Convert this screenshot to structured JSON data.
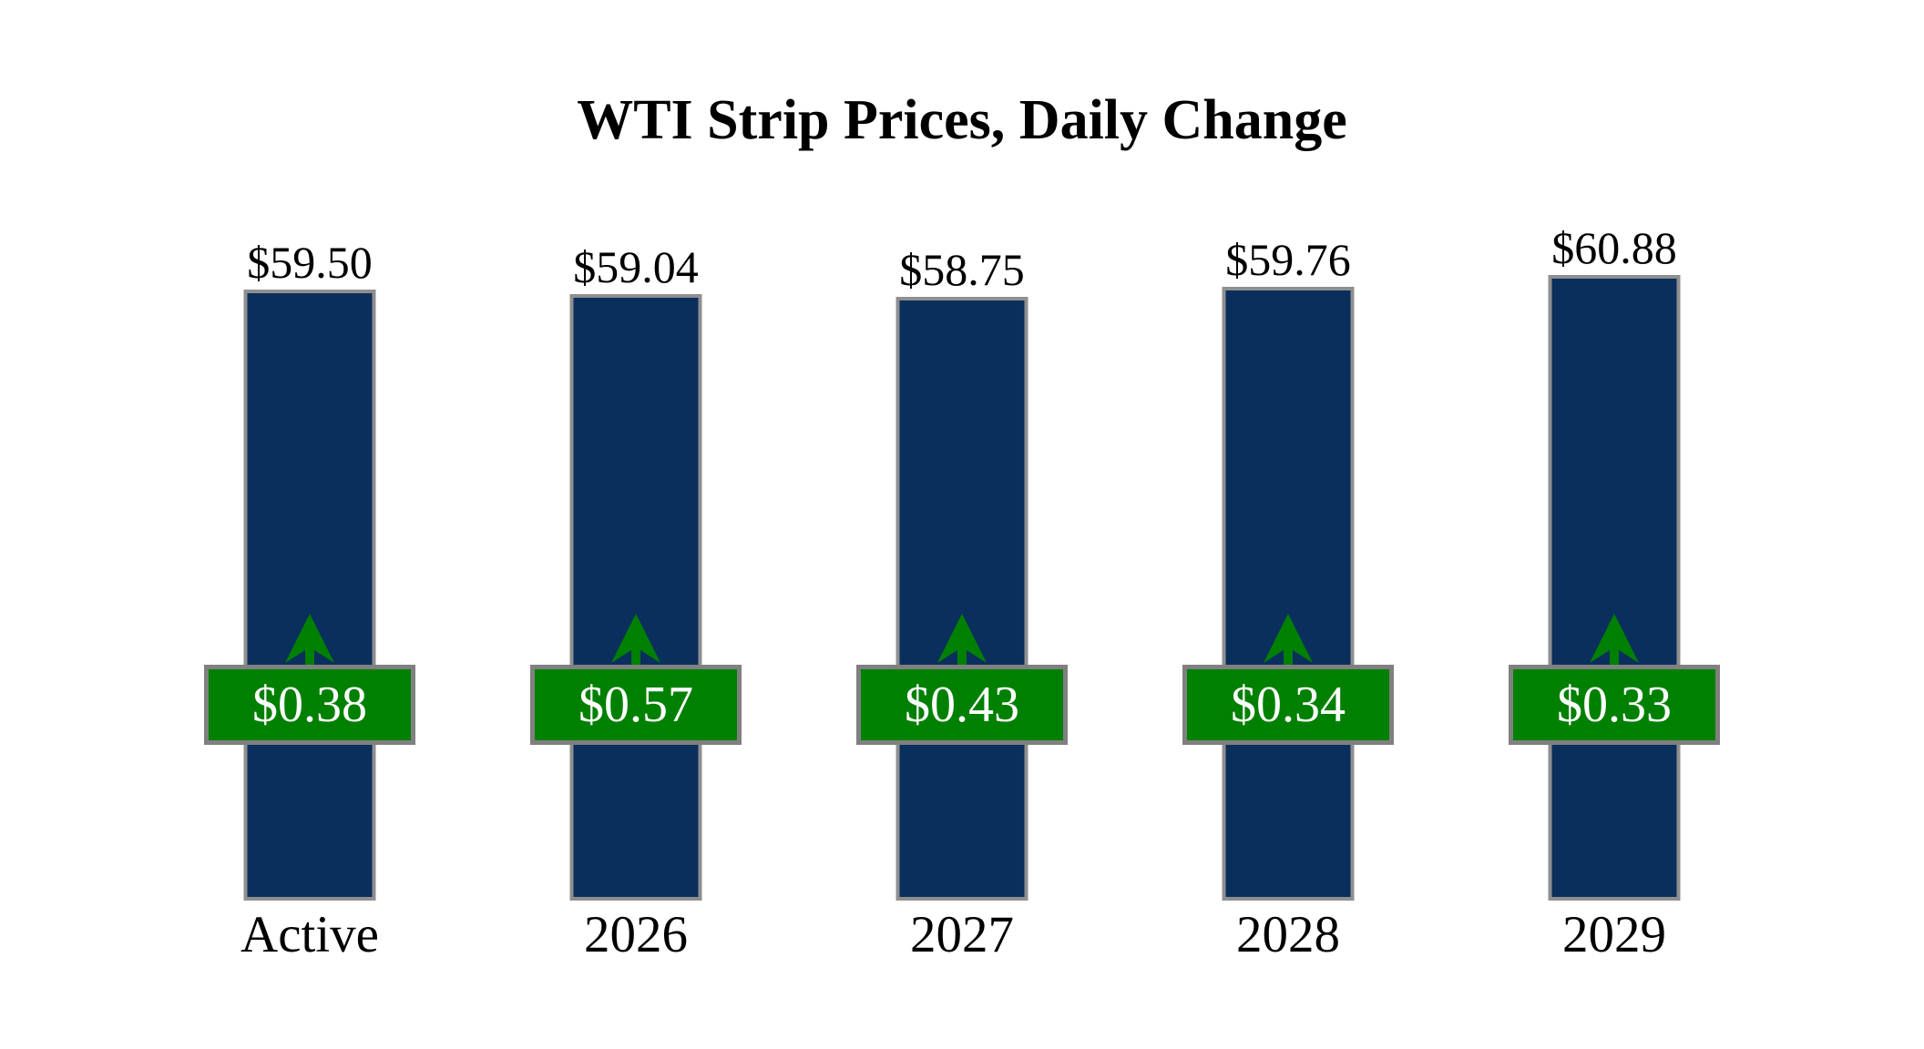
{
  "page": {
    "background_color": "#ffffff"
  },
  "chart_data": {
    "type": "bar",
    "title": "WTI Strip Prices, Daily Change",
    "categories": [
      "Active",
      "2026",
      "2027",
      "2028",
      "2029"
    ],
    "series": [
      {
        "name": "WTI Strip Price",
        "role": "bar",
        "values": [
          59.5,
          59.04,
          58.75,
          59.76,
          60.88
        ],
        "labels": [
          "$59.50",
          "$59.04",
          "$58.75",
          "$59.76",
          "$60.88"
        ]
      },
      {
        "name": "Daily Change",
        "role": "badge-overlay",
        "values": [
          0.38,
          0.57,
          0.43,
          0.34,
          0.33
        ],
        "labels": [
          "$0.38",
          "$0.57",
          "$0.43",
          "$0.34",
          "$0.33"
        ],
        "direction": "up",
        "direction_icon": "up-arrow"
      }
    ],
    "xlabel": "",
    "ylabel": "",
    "ylim": [
      0,
      74
    ],
    "grid": false,
    "legend_position": "none",
    "colors": {
      "bar_fill": "#0b2f5c",
      "bar_border": "#8f8f8f",
      "badge_fill": "#008000",
      "badge_border": "#808080",
      "badge_text": "#ffffff",
      "arrow": "#008000",
      "label_text": "#000000",
      "title_text": "#000000",
      "background": "#ffffff"
    }
  }
}
